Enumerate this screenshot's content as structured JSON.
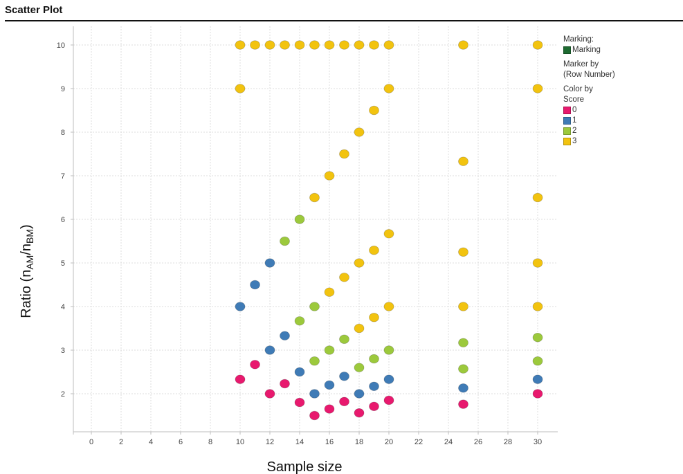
{
  "window": {
    "title": "Scatter Plot"
  },
  "legend": {
    "marking_heading": "Marking:",
    "marking_item": "Marking",
    "marking_color": "#1e6b32",
    "marker_by_line1": "Marker by",
    "marker_by_line2": "(Row Number)",
    "color_by_line1": "Color by",
    "color_by_line2": "Score",
    "items": [
      {
        "label": "0",
        "color": "#e8196e"
      },
      {
        "label": "1",
        "color": "#3f7bb6"
      },
      {
        "label": "2",
        "color": "#9cc93c"
      },
      {
        "label": "3",
        "color": "#f2c30f"
      }
    ]
  },
  "chart_data": {
    "type": "scatter",
    "title": "",
    "xlabel": "Sample size",
    "ylabel": "Ratio (n_AM/n_BM)",
    "ylabel_parts": {
      "prefix": "Ratio (n",
      "sub1": "AM",
      "slash": "/n",
      "sub2": "BM",
      "suffix": ")"
    },
    "xlim": [
      -1,
      31.5
    ],
    "ylim": [
      1.1,
      10.6
    ],
    "xticks": [
      0,
      2,
      4,
      6,
      8,
      10,
      12,
      14,
      16,
      18,
      20,
      22,
      24,
      26,
      28,
      30
    ],
    "yticks": [
      2,
      3,
      4,
      5,
      6,
      7,
      8,
      9,
      10
    ],
    "grid": true,
    "legend_position": "right",
    "series": [
      {
        "name": "0",
        "color": "#e8196e",
        "points": [
          [
            10,
            2.33
          ],
          [
            11,
            2.67
          ],
          [
            12,
            2.0
          ],
          [
            13,
            2.23
          ],
          [
            14,
            1.8
          ],
          [
            15,
            1.5
          ],
          [
            16,
            1.65
          ],
          [
            17,
            1.82
          ],
          [
            18,
            1.56
          ],
          [
            19,
            1.71
          ],
          [
            20,
            1.85
          ],
          [
            25,
            1.76
          ],
          [
            30,
            2.0
          ]
        ]
      },
      {
        "name": "1",
        "color": "#3f7bb6",
        "points": [
          [
            10,
            4.0
          ],
          [
            11,
            4.5
          ],
          [
            12,
            5.0
          ],
          [
            12,
            3.0
          ],
          [
            13,
            3.33
          ],
          [
            14,
            2.5
          ],
          [
            15,
            2.0
          ],
          [
            16,
            2.2
          ],
          [
            17,
            2.4
          ],
          [
            18,
            2.0
          ],
          [
            19,
            2.17
          ],
          [
            20,
            2.33
          ],
          [
            25,
            2.13
          ],
          [
            30,
            2.33
          ]
        ]
      },
      {
        "name": "2",
        "color": "#9cc93c",
        "points": [
          [
            13,
            5.5
          ],
          [
            14,
            6.0
          ],
          [
            14,
            3.67
          ],
          [
            15,
            4.0
          ],
          [
            15,
            2.75
          ],
          [
            16,
            3.0
          ],
          [
            17,
            3.25
          ],
          [
            18,
            2.6
          ],
          [
            19,
            2.8
          ],
          [
            20,
            3.0
          ],
          [
            25,
            3.17
          ],
          [
            25,
            2.57
          ],
          [
            30,
            3.29
          ],
          [
            30,
            2.75
          ]
        ]
      },
      {
        "name": "3",
        "color": "#f2c30f",
        "points": [
          [
            10,
            10
          ],
          [
            11,
            10
          ],
          [
            12,
            10
          ],
          [
            13,
            10
          ],
          [
            14,
            10
          ],
          [
            15,
            10
          ],
          [
            16,
            10
          ],
          [
            17,
            10
          ],
          [
            18,
            10
          ],
          [
            19,
            10
          ],
          [
            20,
            10
          ],
          [
            25,
            10
          ],
          [
            30,
            10
          ],
          [
            10,
            9.0
          ],
          [
            20,
            9.0
          ],
          [
            30,
            9.0
          ],
          [
            15,
            6.5
          ],
          [
            16,
            7.0
          ],
          [
            17,
            7.5
          ],
          [
            18,
            8.0
          ],
          [
            19,
            8.5
          ],
          [
            16,
            4.33
          ],
          [
            17,
            4.67
          ],
          [
            18,
            5.0
          ],
          [
            19,
            5.29
          ],
          [
            20,
            5.67
          ],
          [
            18,
            3.5
          ],
          [
            19,
            3.75
          ],
          [
            20,
            4.0
          ],
          [
            25,
            7.33
          ],
          [
            25,
            5.25
          ],
          [
            25,
            4.0
          ],
          [
            30,
            6.5
          ],
          [
            30,
            5.0
          ],
          [
            30,
            4.0
          ]
        ]
      }
    ]
  }
}
